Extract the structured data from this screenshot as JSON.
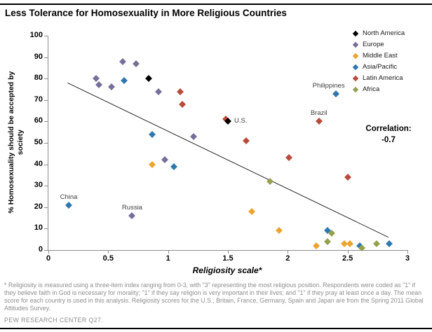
{
  "title": "Less Tolerance for Homosexuality in More Religious Countries",
  "chart_data": {
    "type": "scatter",
    "xlabel": "Religiosity scale*",
    "ylabel_line1": "% Homosexuality should be accepted by",
    "ylabel_line2": "society",
    "xlim": [
      0,
      3
    ],
    "ylim": [
      0,
      100
    ],
    "grid": false,
    "legend_position": "top-right",
    "x_ticks": [
      "0",
      "0.5",
      "1",
      "1.5",
      "2",
      "2.5",
      "3"
    ],
    "y_ticks": [
      "100",
      "90",
      "80",
      "70",
      "60",
      "50",
      "40",
      "30",
      "20",
      "10",
      "0"
    ],
    "correlation_label": "Correlation:",
    "correlation_value": "-0.7",
    "trendline": {
      "x1": 0.16,
      "y1": 78,
      "x2": 2.84,
      "y2": 6,
      "color": "#262626"
    },
    "series": [
      {
        "name": "North America",
        "color": "#000000",
        "z": 10,
        "points": [
          {
            "x": 0.84,
            "y": 80
          },
          {
            "x": 1.5,
            "y": 60,
            "label": "U.S.",
            "label_pos": "right"
          }
        ]
      },
      {
        "name": "Europe",
        "color": "#776E99",
        "z": 2,
        "points": [
          {
            "x": 0.4,
            "y": 80
          },
          {
            "x": 0.42,
            "y": 77
          },
          {
            "x": 0.53,
            "y": 76
          },
          {
            "x": 0.62,
            "y": 88
          },
          {
            "x": 0.73,
            "y": 87
          },
          {
            "x": 0.7,
            "y": 16,
            "label": "Russia",
            "label_pos": "above"
          },
          {
            "x": 0.92,
            "y": 74
          },
          {
            "x": 0.97,
            "y": 42
          },
          {
            "x": 1.21,
            "y": 53
          }
        ]
      },
      {
        "name": "Middle East",
        "color": "#ECA42F",
        "z": 3,
        "points": [
          {
            "x": 0.87,
            "y": 40
          },
          {
            "x": 1.7,
            "y": 18
          },
          {
            "x": 1.93,
            "y": 9
          },
          {
            "x": 2.24,
            "y": 2
          },
          {
            "x": 2.47,
            "y": 3
          },
          {
            "x": 2.52,
            "y": 3
          }
        ]
      },
      {
        "name": "Asia/Pacific",
        "color": "#2F78AD",
        "z": 4,
        "points": [
          {
            "x": 0.17,
            "y": 21,
            "label": "China",
            "label_pos": "above"
          },
          {
            "x": 0.63,
            "y": 79
          },
          {
            "x": 0.87,
            "y": 54
          },
          {
            "x": 1.05,
            "y": 39
          },
          {
            "x": 2.33,
            "y": 9
          },
          {
            "x": 2.4,
            "y": 73,
            "label": "Philippines",
            "label_pos": "above",
            "label_dx": -10
          },
          {
            "x": 2.6,
            "y": 2
          },
          {
            "x": 2.85,
            "y": 3
          }
        ]
      },
      {
        "name": "Latin America",
        "color": "#BA4A3C",
        "z": 5,
        "points": [
          {
            "x": 1.1,
            "y": 74
          },
          {
            "x": 1.12,
            "y": 68
          },
          {
            "x": 1.48,
            "y": 61
          },
          {
            "x": 1.65,
            "y": 51
          },
          {
            "x": 2.01,
            "y": 43
          },
          {
            "x": 2.26,
            "y": 60,
            "label": "Brazil",
            "label_pos": "above"
          },
          {
            "x": 2.5,
            "y": 34
          }
        ]
      },
      {
        "name": "Africa",
        "color": "#95A14F",
        "z": 6,
        "points": [
          {
            "x": 1.85,
            "y": 32
          },
          {
            "x": 2.33,
            "y": 4
          },
          {
            "x": 2.37,
            "y": 8
          },
          {
            "x": 2.62,
            "y": 1
          },
          {
            "x": 2.74,
            "y": 3
          }
        ]
      }
    ]
  },
  "footnote": "* Religiosity is measured using a three-item index ranging from 0-3, with \"3\" representing the most religious position. Respondents were coded as \"1\" if they believe faith in God is necessary for morality; \"1\" if they say religion is very important in their lives; and \"1\" if they pray at least once a day. The mean score for each country is used in this analysis. Religiosity scores for the U.S., Britain, France, Germany, Spain and Japan are from the Spring 2011 Global Attitudes Survey.",
  "source": "PEW RESEARCH CENTER Q27."
}
